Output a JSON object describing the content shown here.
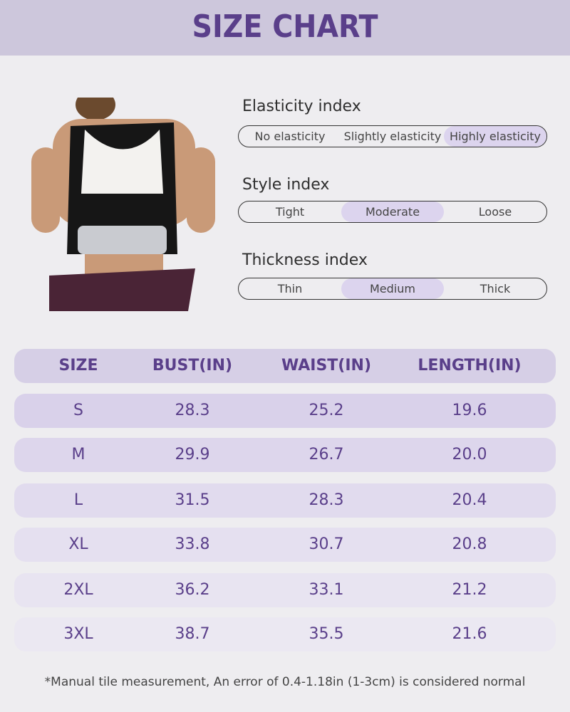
{
  "header": {
    "title": "SIZE CHART"
  },
  "indexes": [
    {
      "label": "Elasticity index",
      "options": [
        "No elasticity",
        "Slightly elasticity",
        "Highly elasticity"
      ],
      "selected": 2
    },
    {
      "label": "Style index",
      "options": [
        "Tight",
        "Moderate",
        "Loose"
      ],
      "selected": 1
    },
    {
      "label": "Thickness index",
      "options": [
        "Thin",
        "Medium",
        "Thick"
      ],
      "selected": 1
    }
  ],
  "table": {
    "columns": [
      "SIZE",
      "BUST(IN)",
      "WAIST(IN)",
      "LENGTH(IN)"
    ],
    "rows": [
      [
        "S",
        "28.3",
        "25.2",
        "19.6"
      ],
      [
        "M",
        "29.9",
        "26.7",
        "20.0"
      ],
      [
        "L",
        "31.5",
        "28.3",
        "20.4"
      ],
      [
        "XL",
        "33.8",
        "30.7",
        "20.8"
      ],
      [
        "2XL",
        "36.2",
        "33.1",
        "21.2"
      ],
      [
        "3XL",
        "38.7",
        "35.5",
        "21.6"
      ]
    ]
  },
  "footnote": "*Manual tile measurement, An error of 0.4-1.18in (1-3cm) is considered normal"
}
